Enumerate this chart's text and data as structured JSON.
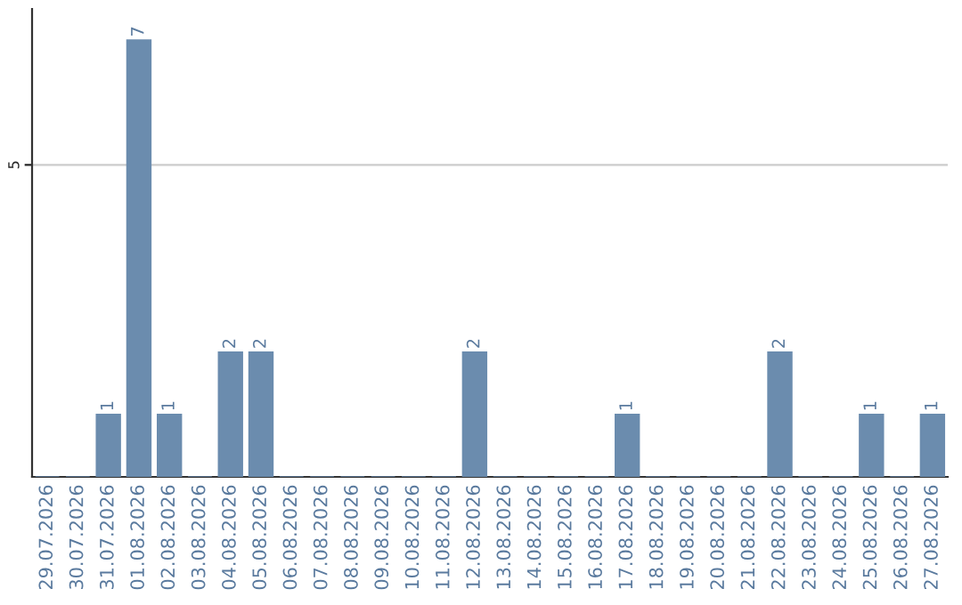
{
  "chart_data": {
    "type": "bar",
    "categories": [
      "29.07.2026",
      "30.07.2026",
      "31.07.2026",
      "01.08.2026",
      "02.08.2026",
      "03.08.2026",
      "04.08.2026",
      "05.08.2026",
      "06.08.2026",
      "07.08.2026",
      "08.08.2026",
      "09.08.2026",
      "10.08.2026",
      "11.08.2026",
      "12.08.2026",
      "13.08.2026",
      "14.08.2026",
      "15.08.2026",
      "16.08.2026",
      "17.08.2026",
      "18.08.2026",
      "19.08.2026",
      "20.08.2026",
      "21.08.2026",
      "22.08.2026",
      "23.08.2026",
      "24.08.2026",
      "25.08.2026",
      "26.08.2026",
      "27.08.2026"
    ],
    "values": [
      0,
      0,
      1,
      7,
      1,
      0,
      2,
      2,
      0,
      0,
      0,
      0,
      0,
      0,
      2,
      0,
      0,
      0,
      0,
      1,
      0,
      0,
      0,
      0,
      2,
      0,
      0,
      1,
      0,
      1
    ],
    "value_labels": [
      null,
      null,
      "1",
      "7",
      "1",
      null,
      "2",
      "2",
      null,
      null,
      null,
      null,
      null,
      null,
      "2",
      null,
      null,
      null,
      null,
      "1",
      null,
      null,
      null,
      null,
      "2",
      null,
      null,
      "1",
      null,
      "1"
    ],
    "color": "#6b8cae",
    "ylim": [
      0,
      7.5
    ],
    "yticks": [
      5
    ],
    "grid": "y",
    "legend": false
  }
}
